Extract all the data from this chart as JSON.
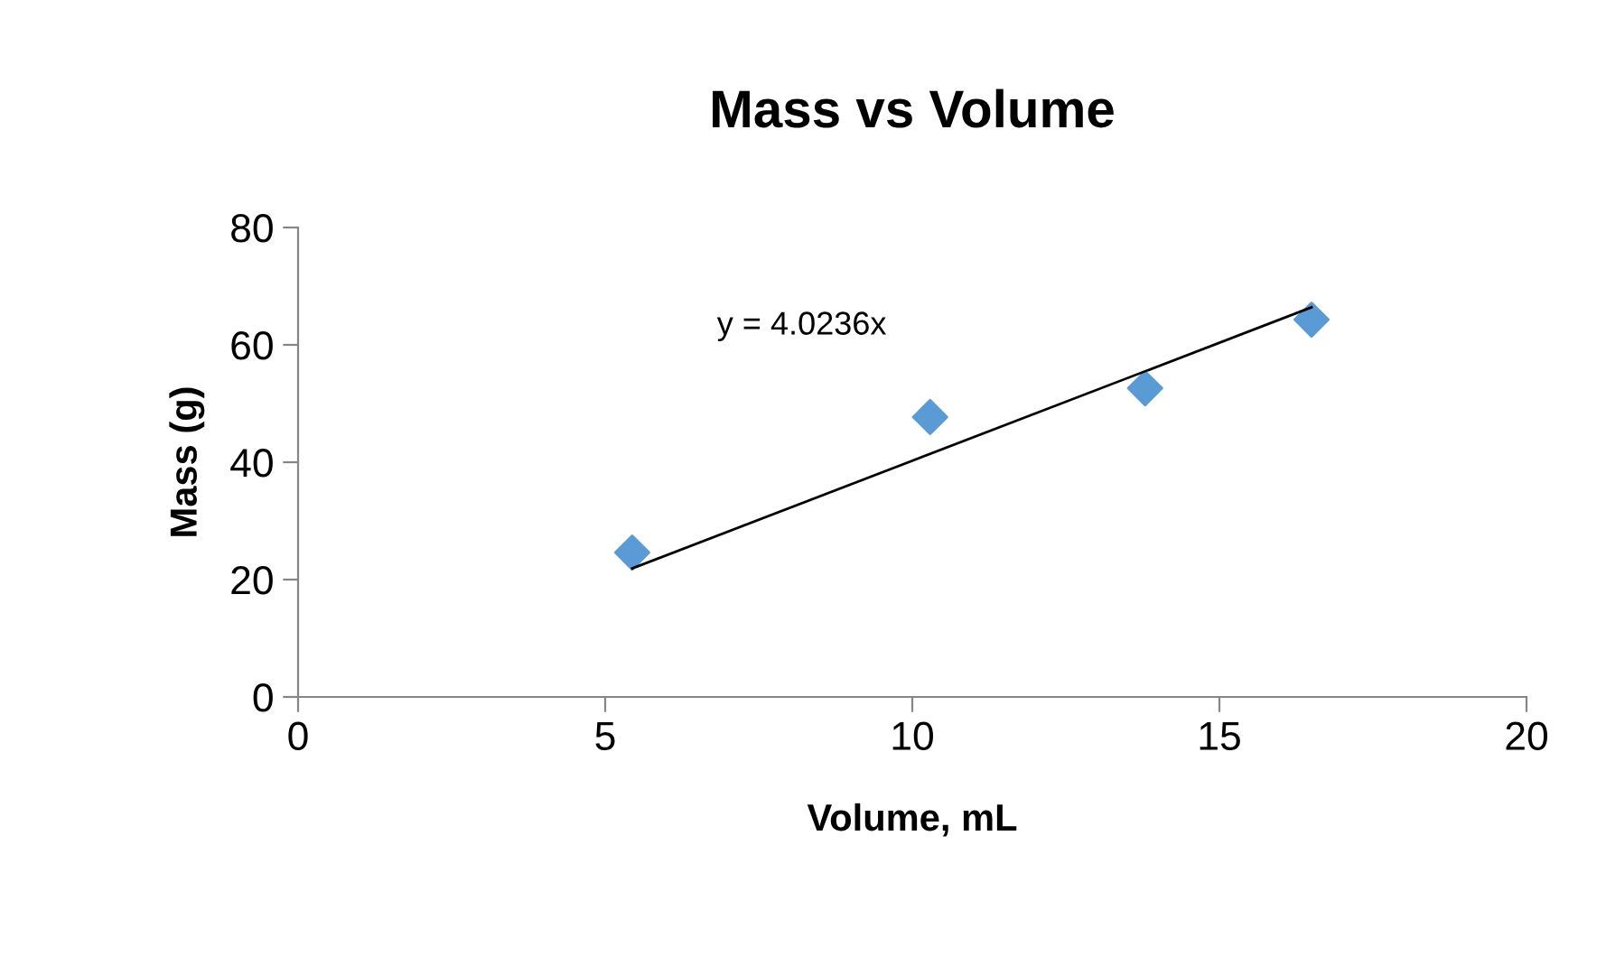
{
  "chart_data": {
    "type": "scatter",
    "title": "Mass vs Volume",
    "xlabel": "Volume, mL",
    "ylabel": "Mass (g)",
    "series": [
      {
        "color": "#5b9bd5",
        "x": [
          5.44,
          10.29,
          13.79,
          16.5
        ],
        "values": [
          24.6,
          47.7,
          52.6,
          64.3
        ],
        "marker": "diamond"
      },
      {
        "type": "line",
        "color": "#000000",
        "x": [
          5.44,
          16.5
        ],
        "values": [
          21.9,
          66.4
        ],
        "marker": "none"
      }
    ],
    "annotations": [
      "y = 4.0236x"
    ],
    "xlim": [
      0,
      20
    ],
    "xticks": [
      0,
      5,
      10,
      15,
      20
    ],
    "ylim": [
      0,
      80
    ],
    "yticks": [
      0,
      20,
      40,
      60,
      80
    ],
    "grid": false,
    "legend": false
  }
}
